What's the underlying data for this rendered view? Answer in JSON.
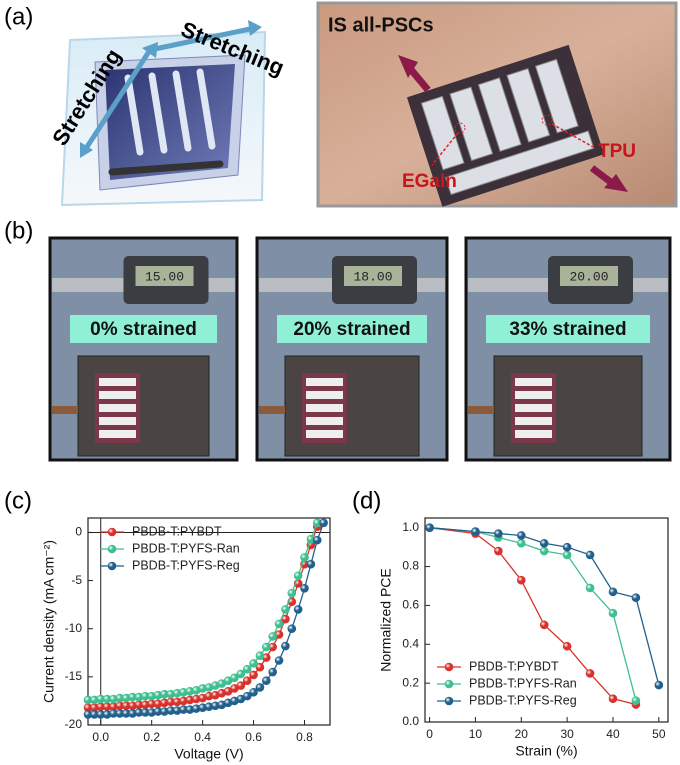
{
  "figure": {
    "panel_labels": [
      "(a)",
      "(b)",
      "(c)",
      "(d)"
    ],
    "a": {
      "stretching": [
        "Stretching",
        "Stretching"
      ],
      "photo_title": "IS all-PSCs",
      "egain": "EGaIn",
      "tpu": "TPU"
    },
    "b": {
      "captions": [
        "0% strained",
        "20% strained",
        "33% strained"
      ],
      "displays": [
        "15.00",
        "18.00",
        "20.00"
      ]
    }
  },
  "chart_data": [
    {
      "type": "line",
      "xlabel": "Voltage (V)",
      "ylabel": "Current density (mA cm⁻²)",
      "xlim": [
        -0.05,
        0.9
      ],
      "ylim": [
        -20,
        1.5
      ],
      "xticks": [
        {
          "value": 0,
          "label": "0.0"
        },
        {
          "value": 0.2,
          "label": "0.2"
        },
        {
          "value": 0.4,
          "label": "0.4"
        },
        {
          "value": 0.6,
          "label": "0.6"
        },
        {
          "value": 0.8,
          "label": "0.8"
        }
      ],
      "yticks": [
        0,
        -5,
        -10,
        -15,
        -20
      ],
      "zero_lines": true,
      "legend": "upper left",
      "x": [
        -0.05,
        -0.025,
        0,
        0.025,
        0.05,
        0.075,
        0.1,
        0.125,
        0.15,
        0.175,
        0.2,
        0.225,
        0.25,
        0.275,
        0.3,
        0.325,
        0.35,
        0.375,
        0.4,
        0.425,
        0.45,
        0.475,
        0.5,
        0.525,
        0.55,
        0.575,
        0.6,
        0.625,
        0.65,
        0.675,
        0.7,
        0.725,
        0.75,
        0.775,
        0.8,
        0.825,
        0.85,
        0.875
      ],
      "series": [
        {
          "name": "PBDB-T:PYBDT",
          "color": "#d9312b",
          "values": [
            -18.2,
            -18.2,
            -18.1,
            -18.1,
            -18.1,
            -18.0,
            -18.0,
            -18.0,
            -17.9,
            -17.9,
            -17.8,
            -17.8,
            -17.7,
            -17.6,
            -17.6,
            -17.5,
            -17.4,
            -17.3,
            -17.2,
            -17.0,
            -16.9,
            -16.7,
            -16.5,
            -16.2,
            -15.9,
            -15.4,
            -14.8,
            -14.0,
            -13.0,
            -11.9,
            -10.6,
            -9.0,
            -7.2,
            -5.3,
            -3.3,
            -1.3,
            0.6,
            null
          ]
        },
        {
          "name": "PBDB-T:PYFS-Ran",
          "color": "#3dbf8f",
          "values": [
            -17.4,
            -17.4,
            -17.3,
            -17.3,
            -17.3,
            -17.2,
            -17.2,
            -17.1,
            -17.1,
            -17.0,
            -17.0,
            -16.9,
            -16.8,
            -16.8,
            -16.7,
            -16.6,
            -16.5,
            -16.4,
            -16.2,
            -16.1,
            -15.9,
            -15.7,
            -15.4,
            -15.1,
            -14.7,
            -14.2,
            -13.6,
            -12.8,
            -11.9,
            -10.8,
            -9.5,
            -8.0,
            -6.3,
            -4.5,
            -2.6,
            -0.7,
            1.0,
            null
          ]
        },
        {
          "name": "PBDB-T:PYFS-Reg",
          "color": "#22608c",
          "values": [
            -18.9,
            -18.9,
            -18.9,
            -18.9,
            -18.8,
            -18.8,
            -18.8,
            -18.8,
            -18.7,
            -18.7,
            -18.7,
            -18.6,
            -18.6,
            -18.5,
            -18.5,
            -18.4,
            -18.4,
            -18.3,
            -18.2,
            -18.1,
            -18.0,
            -17.9,
            -17.7,
            -17.5,
            -17.3,
            -17.0,
            -16.6,
            -16.1,
            -15.4,
            -14.5,
            -13.3,
            -11.8,
            -10.0,
            -8.0,
            -5.8,
            -3.3,
            -0.8,
            1.0
          ]
        }
      ]
    },
    {
      "type": "line",
      "xlabel": "Strain (%)",
      "ylabel": "Normalized PCE",
      "xlim": [
        -1,
        52
      ],
      "ylim": [
        0,
        1.05
      ],
      "xticks": [
        0,
        10,
        20,
        30,
        40,
        50
      ],
      "yticks": [
        {
          "value": 0,
          "label": "0.0"
        },
        {
          "value": 0.2,
          "label": "0.2"
        },
        {
          "value": 0.4,
          "label": "0.4"
        },
        {
          "value": 0.6,
          "label": "0.6"
        },
        {
          "value": 0.8,
          "label": "0.8"
        },
        {
          "value": 1,
          "label": "1.0"
        }
      ],
      "zero_lines": false,
      "legend": "lower left",
      "series": [
        {
          "name": "PBDB-T:PYBDT",
          "color": "#d9312b",
          "x": [
            0,
            10,
            15,
            20,
            25,
            30,
            35,
            40,
            45
          ],
          "values": [
            1.0,
            0.97,
            0.88,
            0.73,
            0.5,
            0.39,
            0.25,
            0.12,
            0.09
          ]
        },
        {
          "name": "PBDB-T:PYFS-Ran",
          "color": "#3dbf8f",
          "x": [
            0,
            10,
            15,
            20,
            25,
            30,
            35,
            40,
            45
          ],
          "values": [
            1.0,
            0.98,
            0.95,
            0.92,
            0.88,
            0.86,
            0.69,
            0.56,
            0.11
          ]
        },
        {
          "name": "PBDB-T:PYFS-Reg",
          "color": "#22608c",
          "x": [
            0,
            10,
            15,
            20,
            25,
            30,
            35,
            40,
            45,
            50
          ],
          "values": [
            1.0,
            0.98,
            0.97,
            0.96,
            0.92,
            0.9,
            0.86,
            0.67,
            0.64,
            0.19
          ]
        }
      ]
    }
  ]
}
